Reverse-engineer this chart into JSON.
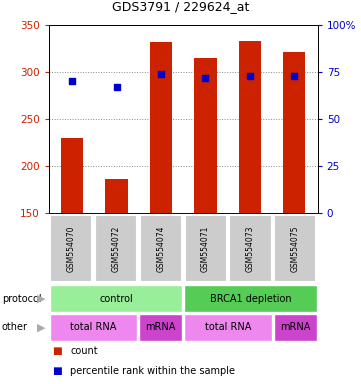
{
  "title": "GDS3791 / 229624_at",
  "samples": [
    "GSM554070",
    "GSM554072",
    "GSM554074",
    "GSM554071",
    "GSM554073",
    "GSM554075"
  ],
  "counts": [
    230,
    186,
    332,
    315,
    333,
    321
  ],
  "percentile_ranks": [
    70,
    67,
    74,
    72,
    73,
    73
  ],
  "ylim_left": [
    150,
    350
  ],
  "ylim_right": [
    0,
    100
  ],
  "yticks_left": [
    150,
    200,
    250,
    300,
    350
  ],
  "yticks_right": [
    0,
    25,
    50,
    75,
    100
  ],
  "bar_color": "#cc2200",
  "dot_color": "#0000cc",
  "bar_bottom": 150,
  "protocol_left_color": "#99ee99",
  "protocol_right_color": "#55cc55",
  "other_color_light": "#ee88ee",
  "other_color_dark": "#cc44cc",
  "sample_box_color": "#cccccc",
  "bg_color": "#ffffff",
  "grid_color": "#888888",
  "left_axis_color": "#cc2200",
  "right_axis_color": "#0000cc",
  "bar_width": 0.5
}
